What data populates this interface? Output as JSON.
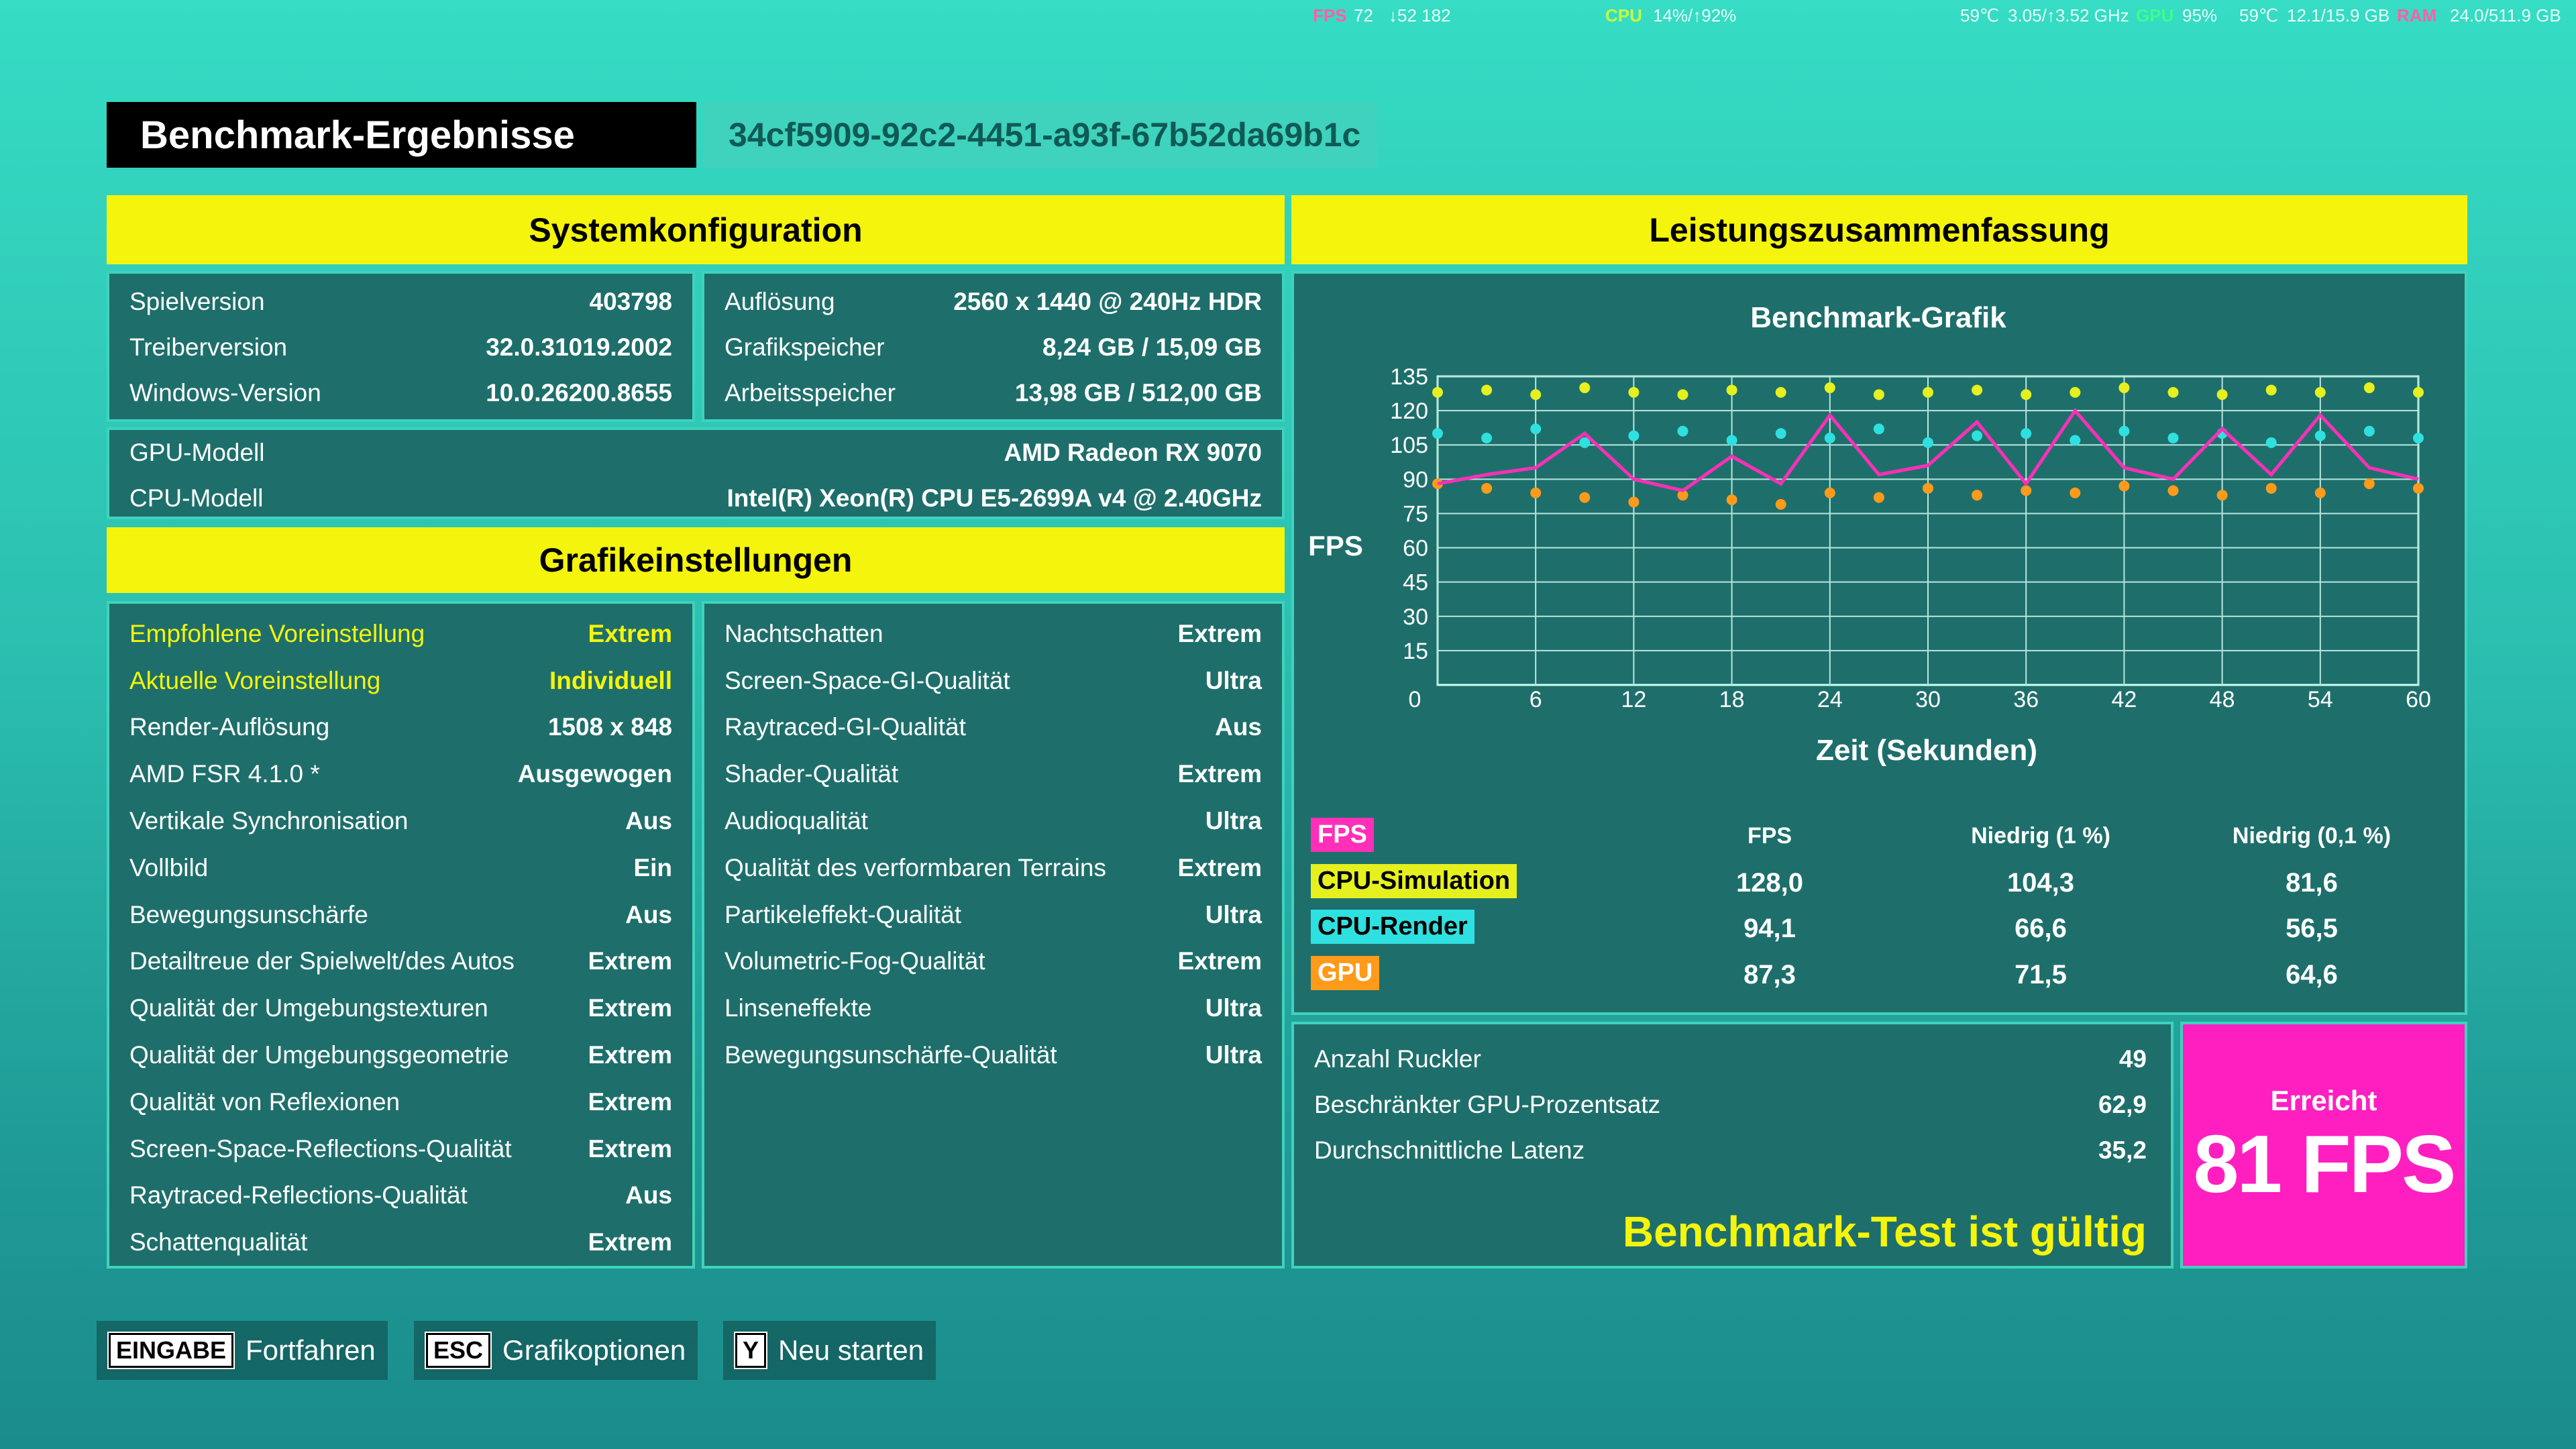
{
  "overlay": [
    {
      "text": "FPS",
      "color": "#ff5fa8"
    },
    {
      "text": "72"
    },
    {
      "text": "↓52 182"
    },
    {
      "text": "CPU",
      "color": "#c8ff3c"
    },
    {
      "text": "14%/↑92%"
    },
    {
      "text": "59℃"
    },
    {
      "text": "3.05/↑3.52 GHz"
    },
    {
      "text": "GPU",
      "color": "#3cff8c"
    },
    {
      "text": "95%"
    },
    {
      "text": "59℃"
    },
    {
      "text": "12.1/15.9 GB"
    },
    {
      "text": "RAM",
      "color": "#ff5fa8"
    },
    {
      "text": "24.0/511.9 GB"
    }
  ],
  "header": {
    "title": "Benchmark-Ergebnisse",
    "id": "34cf5909-92c2-4451-a93f-67b52da69b1c"
  },
  "system": {
    "heading": "Systemkonfiguration",
    "left": [
      [
        "Spielversion",
        "403798"
      ],
      [
        "Treiberversion",
        "32.0.31019.2002"
      ],
      [
        "Windows-Version",
        "10.0.26200.8655"
      ]
    ],
    "right": [
      [
        "Auflösung",
        "2560 x 1440 @ 240Hz HDR"
      ],
      [
        "Grafikspeicher",
        "8,24 GB / 15,09 GB"
      ],
      [
        "Arbeitsspeicher",
        "13,98 GB / 512,00 GB"
      ]
    ],
    "hardware": [
      [
        "GPU-Modell",
        "AMD Radeon RX 9070"
      ],
      [
        "CPU-Modell",
        "Intel(R) Xeon(R) CPU E5-2699A v4 @ 2.40GHz"
      ]
    ]
  },
  "graphics": {
    "heading": "Grafikeinstellungen",
    "left": [
      [
        "Empfohlene Voreinstellung",
        "Extrem"
      ],
      [
        "Aktuelle Voreinstellung",
        "Individuell"
      ],
      [
        "Render-Auflösung",
        "1508 x 848"
      ],
      [
        "AMD FSR 4.1.0 *",
        "Ausgewogen"
      ],
      [
        "Vertikale Synchronisation",
        "Aus"
      ],
      [
        "Vollbild",
        "Ein"
      ],
      [
        "Bewegungsunschärfe",
        "Aus"
      ],
      [
        "Detailtreue der Spielwelt/des Autos",
        "Extrem"
      ],
      [
        "Qualität der Umgebungstexturen",
        "Extrem"
      ],
      [
        "Qualität der Umgebungsgeometrie",
        "Extrem"
      ],
      [
        "Qualität von Reflexionen",
        "Extrem"
      ],
      [
        "Screen-Space-Reflections-Qualität",
        "Extrem"
      ],
      [
        "Raytraced-Reflections-Qualität",
        "Aus"
      ],
      [
        "Schattenqualität",
        "Extrem"
      ]
    ],
    "right": [
      [
        "Nachtschatten",
        "Extrem"
      ],
      [
        "Screen-Space-GI-Qualität",
        "Ultra"
      ],
      [
        "Raytraced-GI-Qualität",
        "Aus"
      ],
      [
        "Shader-Qualität",
        "Extrem"
      ],
      [
        "Audioqualität",
        "Ultra"
      ],
      [
        "Qualität des verformbaren Terrains",
        "Extrem"
      ],
      [
        "Partikeleffekt-Qualität",
        "Ultra"
      ],
      [
        "Volumetric-Fog-Qualität",
        "Extrem"
      ],
      [
        "Linseneffekte",
        "Ultra"
      ],
      [
        "Bewegungsunschärfe-Qualität",
        "Ultra"
      ]
    ]
  },
  "performance": {
    "heading": "Leistungszusammenfassung",
    "stats": [
      [
        "Anzahl Ruckler",
        "49"
      ],
      [
        "Beschränkter GPU-Prozentsatz",
        "62,9"
      ],
      [
        "Durchschnittliche Latenz",
        "35,2"
      ]
    ],
    "valid": "Benchmark-Test ist gültig",
    "achieved_label": "Erreicht",
    "achieved": "81 FPS"
  },
  "summary_table": {
    "columns": [
      "FPS",
      "Niedrig (1 %)",
      "Niedrig (0,1 %)"
    ],
    "rows": [
      [
        "128,0",
        "104,3",
        "81,6"
      ],
      [
        "94,1",
        "66,6",
        "56,5"
      ],
      [
        "87,3",
        "71,5",
        "64,6"
      ]
    ]
  },
  "chart_data": {
    "type": "line",
    "title": "Benchmark-Grafik",
    "x_label": "Zeit (Sekunden)",
    "y_label": "FPS",
    "x": [
      0,
      3,
      6,
      9,
      12,
      15,
      18,
      21,
      24,
      27,
      30,
      33,
      36,
      39,
      42,
      45,
      48,
      51,
      54,
      57,
      60
    ],
    "series": [
      {
        "name": "FPS",
        "color": "#ff2fb8",
        "mode": "line",
        "values": [
          88,
          92,
          95,
          110,
          90,
          85,
          100,
          88,
          118,
          92,
          96,
          115,
          88,
          120,
          95,
          90,
          112,
          92,
          118,
          95,
          90
        ]
      },
      {
        "name": "CPU-Simulation",
        "color": "#e6f01e",
        "mode": "markers",
        "values": [
          128,
          129,
          127,
          130,
          128,
          127,
          129,
          128,
          130,
          127,
          128,
          129,
          127,
          128,
          130,
          128,
          127,
          129,
          128,
          130,
          128
        ]
      },
      {
        "name": "CPU-Render",
        "color": "#2fe0e0",
        "mode": "markers",
        "values": [
          110,
          108,
          112,
          106,
          109,
          111,
          107,
          110,
          108,
          112,
          106,
          109,
          110,
          107,
          111,
          108,
          110,
          106,
          109,
          111,
          108
        ]
      },
      {
        "name": "GPU",
        "color": "#ff9a1a",
        "mode": "markers",
        "values": [
          88,
          86,
          84,
          82,
          80,
          83,
          81,
          79,
          84,
          82,
          86,
          83,
          85,
          84,
          87,
          85,
          83,
          86,
          84,
          88,
          86
        ]
      }
    ],
    "xlim": [
      0,
      60
    ],
    "ylim": [
      0,
      135
    ],
    "xticks": [
      0,
      6,
      12,
      18,
      24,
      30,
      36,
      42,
      48,
      54,
      60
    ],
    "yticks": [
      15,
      30,
      45,
      60,
      75,
      90,
      105,
      120,
      135
    ],
    "grid": true
  },
  "footer": [
    {
      "key": "EINGABE",
      "label": "Fortfahren"
    },
    {
      "key": "ESC",
      "label": "Grafikoptionen"
    },
    {
      "key": "Y",
      "label": "Neu starten"
    }
  ]
}
